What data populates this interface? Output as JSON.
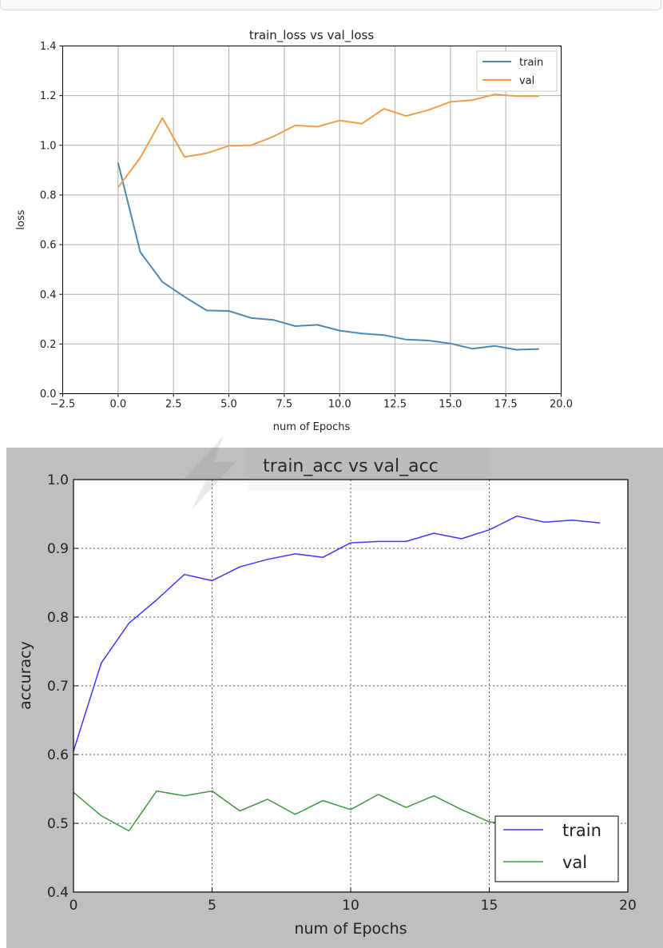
{
  "charts": {
    "loss": {
      "title": "train_loss vs val_loss",
      "xlabel": "num of Epochs",
      "ylabel": "loss",
      "xticks": [
        "−2.5",
        "0.0",
        "2.5",
        "5.0",
        "7.5",
        "10.0",
        "12.5",
        "15.0",
        "17.5",
        "20.0"
      ],
      "yticks": [
        "0.0",
        "0.2",
        "0.4",
        "0.6",
        "0.8",
        "1.0",
        "1.2",
        "1.4"
      ],
      "legend": [
        "train",
        "val"
      ]
    },
    "acc": {
      "title": "train_acc vs val_acc",
      "xlabel": "num of Epochs",
      "ylabel": "accuracy",
      "xticks": [
        "0",
        "5",
        "10",
        "15",
        "20"
      ],
      "yticks": [
        "0.4",
        "0.5",
        "0.6",
        "0.7",
        "0.8",
        "0.9",
        "1.0"
      ],
      "legend": [
        "train",
        "val"
      ]
    }
  },
  "chart_data": [
    {
      "type": "line",
      "title": "train_loss vs val_loss",
      "xlabel": "num of Epochs",
      "ylabel": "loss",
      "xlim": [
        -2.5,
        20.0
      ],
      "ylim": [
        0.0,
        1.4
      ],
      "grid": true,
      "legend_position": "top-right",
      "x": [
        0,
        1,
        2,
        3,
        4,
        5,
        6,
        7,
        8,
        9,
        10,
        11,
        12,
        13,
        14,
        15,
        16,
        17,
        18,
        19
      ],
      "series": [
        {
          "name": "train",
          "color": "#4c87b9",
          "values": [
            0.93,
            0.57,
            0.45,
            0.39,
            0.335,
            0.333,
            0.305,
            0.297,
            0.272,
            0.277,
            0.254,
            0.242,
            0.236,
            0.218,
            0.214,
            0.202,
            0.181,
            0.192,
            0.177,
            0.18
          ]
        },
        {
          "name": "val",
          "color": "#f39c4a",
          "values": [
            0.83,
            0.95,
            1.11,
            0.953,
            0.968,
            0.998,
            1.0,
            1.035,
            1.08,
            1.075,
            1.1,
            1.087,
            1.147,
            1.118,
            1.142,
            1.175,
            1.182,
            1.205,
            1.198,
            1.198
          ]
        }
      ]
    },
    {
      "type": "line",
      "title": "train_acc vs val_acc",
      "xlabel": "num of Epochs",
      "ylabel": "accuracy",
      "xlim": [
        0,
        20
      ],
      "ylim": [
        0.4,
        1.0
      ],
      "grid": true,
      "legend_position": "bottom-right",
      "x": [
        0,
        1,
        2,
        3,
        4,
        5,
        6,
        7,
        8,
        9,
        10,
        11,
        12,
        13,
        14,
        15,
        16,
        17,
        18,
        19
      ],
      "series": [
        {
          "name": "train",
          "color": "#3a3aff",
          "values": [
            0.605,
            0.733,
            0.791,
            0.825,
            0.862,
            0.853,
            0.873,
            0.884,
            0.892,
            0.887,
            0.908,
            0.91,
            0.91,
            0.922,
            0.914,
            0.927,
            0.947,
            0.938,
            0.941,
            0.937
          ]
        },
        {
          "name": "val",
          "color": "#3e9a3e",
          "values": [
            0.545,
            0.511,
            0.489,
            0.547,
            0.54,
            0.547,
            0.518,
            0.535,
            0.513,
            0.533,
            0.52,
            0.542,
            0.523,
            0.54,
            0.52,
            0.502,
            0.498,
            0.5,
            0.505,
            0.5
          ]
        }
      ]
    }
  ]
}
